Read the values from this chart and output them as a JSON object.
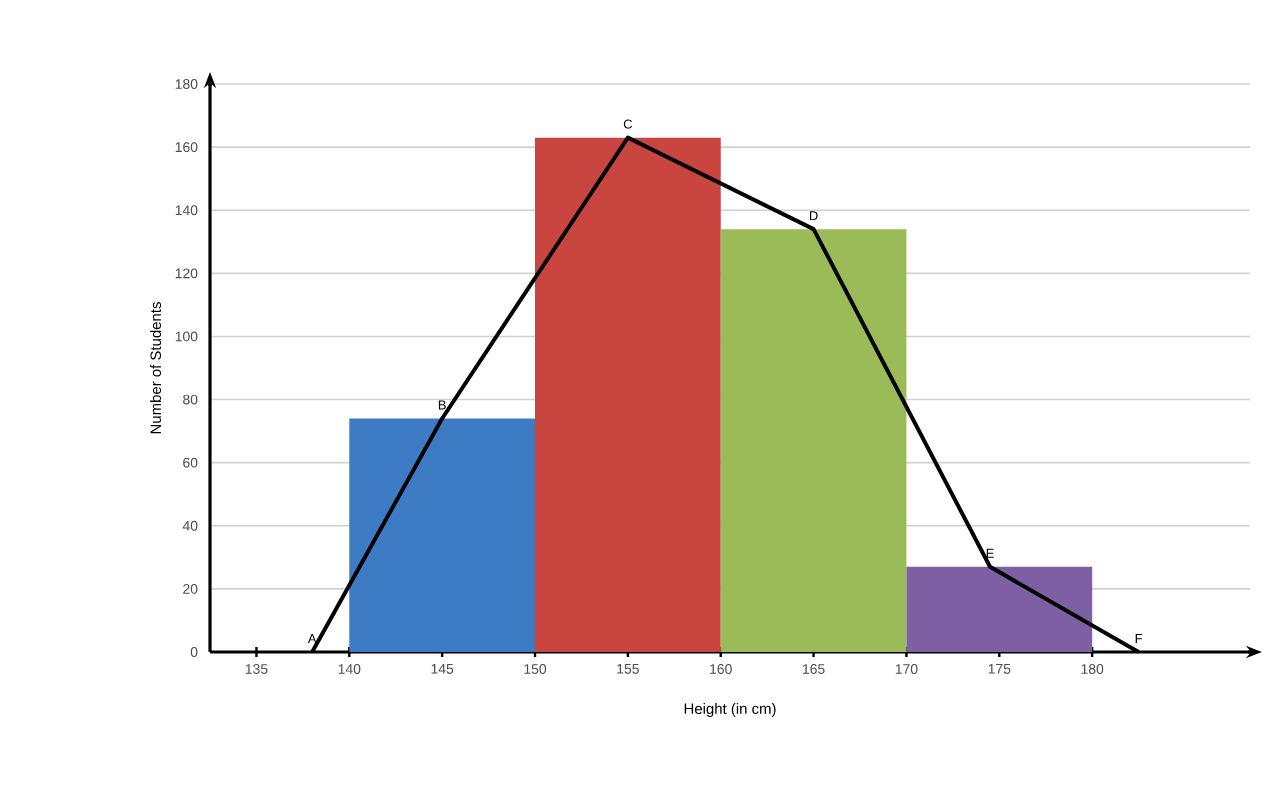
{
  "chart_data": {
    "type": "histogram",
    "xlabel": "Height (in cm)",
    "ylabel": "Number of Students",
    "bins": [
      140,
      150,
      160,
      170,
      180
    ],
    "values": [
      74,
      163,
      134,
      27
    ],
    "colors": [
      "#3d7cc4",
      "#c94540",
      "#9bbb59",
      "#7f5fa3"
    ],
    "series": [
      {
        "type": "line",
        "color": "#000000",
        "x": [
          138,
          145,
          155,
          165,
          174.5,
          182.5
        ],
        "values": [
          0,
          74,
          163,
          134,
          27,
          0
        ]
      }
    ],
    "annotations": [
      {
        "text": "A",
        "x": 138,
        "y": 0
      },
      {
        "text": "B",
        "x": 145,
        "y": 74
      },
      {
        "text": "C",
        "x": 155,
        "y": 163
      },
      {
        "text": "D",
        "x": 165,
        "y": 134
      },
      {
        "text": "E",
        "x": 174.5,
        "y": 27
      },
      {
        "text": "F",
        "x": 182.5,
        "y": 0
      }
    ],
    "xlim": [
      132.5,
      188.5
    ],
    "ylim": [
      0,
      180
    ],
    "xticks": [
      135,
      140,
      145,
      150,
      155,
      160,
      165,
      170,
      175,
      180
    ],
    "yticks": [
      0,
      20,
      40,
      60,
      80,
      100,
      120,
      140,
      160,
      180
    ],
    "grid": "y"
  }
}
